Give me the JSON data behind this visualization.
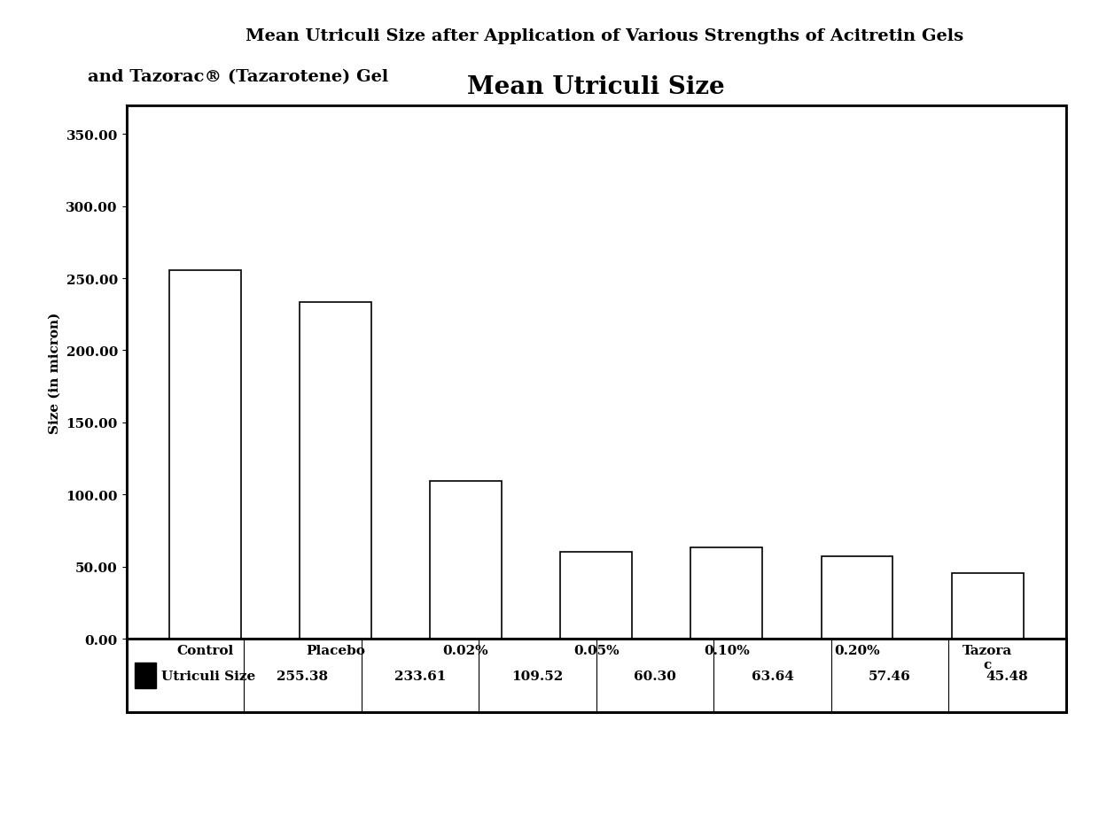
{
  "title_line1": "Mean Utriculi Size after Application of Various Strengths of Acitretin Gels",
  "title_line2": "and Tazorac® (Tazarotene) Gel",
  "chart_title": "Mean Utriculi Size",
  "ylabel": "Size (in micron)",
  "categories": [
    "Control",
    "Placebo",
    "0.02%",
    "0.05%",
    "0.10%",
    "0.20%",
    "Tazora\nc"
  ],
  "values": [
    255.38,
    233.61,
    109.52,
    60.3,
    63.64,
    57.46,
    45.48
  ],
  "bar_color": "#ffffff",
  "bar_edge_color": "#000000",
  "yticks": [
    0.0,
    50.0,
    100.0,
    150.0,
    200.0,
    250.0,
    300.0,
    350.0
  ],
  "ylim": [
    0,
    370
  ],
  "legend_label": "Utriculi Size",
  "table_values": [
    "255.38",
    "233.61",
    "109.52",
    "60.30",
    "63.64",
    "57.46",
    "45.48"
  ],
  "title_fontsize": 14,
  "chart_title_fontsize": 20,
  "axis_label_fontsize": 11,
  "tick_fontsize": 11,
  "table_fontsize": 11,
  "background_color": "#ffffff",
  "figure_bg": "#ffffff"
}
